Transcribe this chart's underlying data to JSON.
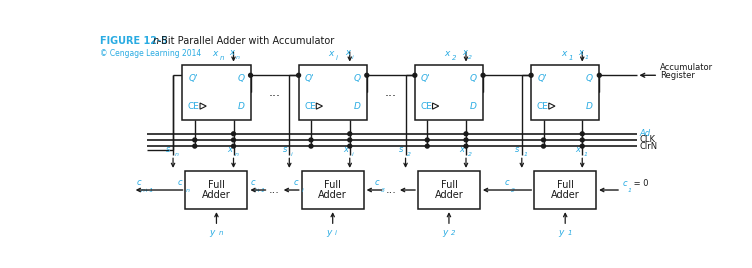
{
  "title_figure": "FIGURE 12-5",
  "title_italic": "n",
  "title_rest": "-Bit Parallel Adder with Accumulator",
  "copyright": "© Cengage Learning 2014",
  "cyan_color": "#29ABE2",
  "black_color": "#1a1a1a",
  "bg_color": "#ffffff",
  "acc_label_line1": "Accumulator",
  "acc_label_line2": "Register",
  "bus_labels": [
    "Ad",
    "CLK",
    "ClrN"
  ],
  "col_subs": [
    "n",
    "i",
    "2",
    "1"
  ],
  "figsize": [
    7.52,
    2.68
  ],
  "dpi": 100
}
